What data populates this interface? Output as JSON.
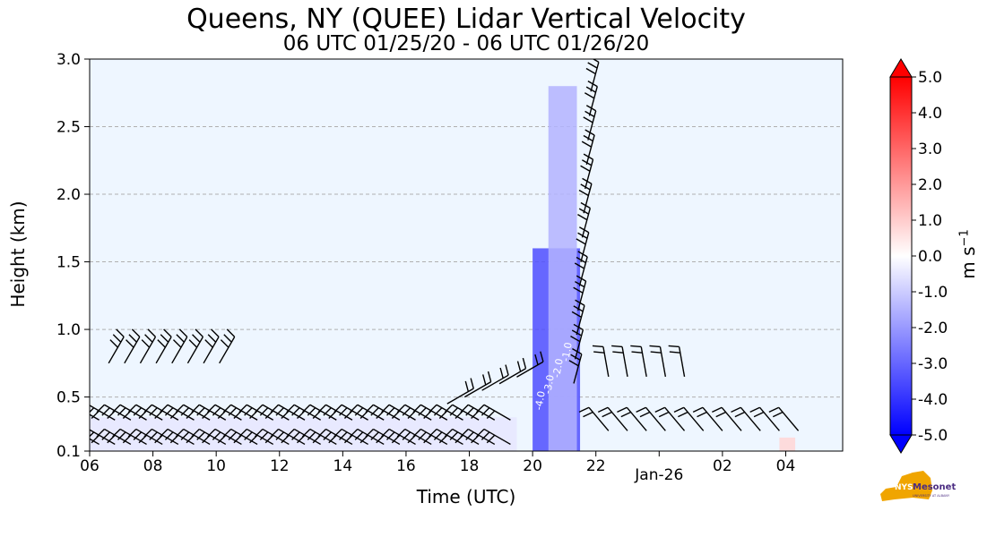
{
  "title": "Queens, NY (QUEE) Lidar Vertical Velocity",
  "subtitle": "06 UTC 01/25/20 - 06 UTC 01/26/20",
  "logo": {
    "brand": "NYS Mesonet",
    "tagline": "UNIVERSITY AT ALBANY",
    "color": "#f0a500"
  },
  "chart_data": {
    "type": "heatmap",
    "xlabel": "Time (UTC)",
    "ylabel": "Height (km)",
    "x_ticks": [
      "06",
      "08",
      "10",
      "12",
      "14",
      "16",
      "18",
      "20",
      "22",
      "Jan-26",
      "02",
      "04"
    ],
    "xlim_hours": [
      6,
      29.8
    ],
    "y_ticks": [
      "0.1",
      "0.5",
      "1.0",
      "1.5",
      "2.0",
      "2.5",
      "3.0"
    ],
    "ylim": [
      0.1,
      3.0
    ],
    "grid": "horizontal dashed",
    "background_color": "#eef6ff",
    "colorbar": {
      "label": "m s",
      "label_sup": "−1",
      "range": [
        -5.0,
        5.0
      ],
      "ticks": [
        "5.0",
        "4.0",
        "3.0",
        "2.0",
        "1.0",
        "0.0",
        "-1.0",
        "-2.0",
        "-3.0",
        "-4.0",
        "-5.0"
      ],
      "extend": "both",
      "colormap": "bwr"
    },
    "velocity_regions": [
      {
        "description": "low-level weak downward layer",
        "time_start": 6.0,
        "time_end": 19.5,
        "height_max": 0.35,
        "value": -0.5
      },
      {
        "description": "downward band",
        "time_start": 20.0,
        "time_end": 21.5,
        "height_max": 1.6,
        "value": -3.5
      },
      {
        "description": "upper downward plume",
        "time_start": 20.5,
        "time_end": 21.4,
        "height_max": 2.8,
        "value": -1.5
      },
      {
        "description": "late weak updraft patch",
        "time_start": 27.8,
        "time_end": 28.3,
        "height_max": 0.2,
        "value": 0.8
      }
    ],
    "contour_labels": [
      "-4.0",
      "-3.0",
      "-2.0",
      "-1.0"
    ],
    "wind_barbs": "horizontal wind barbs plotted along height and time"
  }
}
